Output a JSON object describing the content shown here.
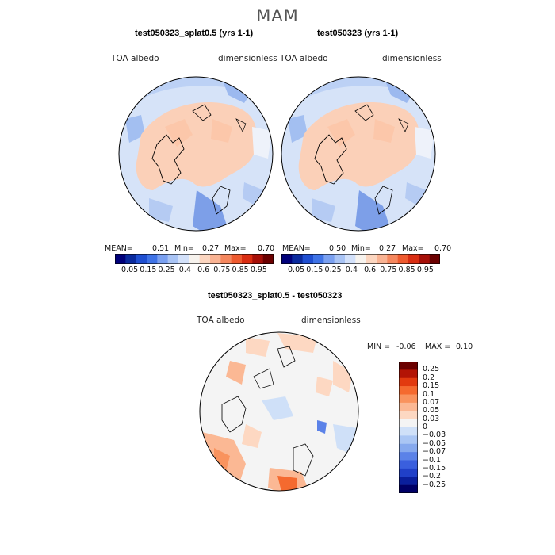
{
  "season_title": "MAM",
  "panels": [
    {
      "title": "test050323_splat0.5 (yrs 1-1)",
      "variable": "TOA albedo",
      "units": "dimensionless",
      "stats": {
        "mean_label": "MEAN=",
        "mean": "0.51",
        "min_label": "Min=",
        "min": "0.27",
        "max_label": "Max=",
        "max": "0.70"
      }
    },
    {
      "title": "test050323 (yrs 1-1)",
      "variable": "TOA albedo",
      "units": "dimensionless",
      "stats": {
        "mean_label": "MEAN=",
        "mean": "0.50",
        "min_label": "Min=",
        "min": "0.27",
        "max_label": "Max=",
        "max": "0.70"
      }
    }
  ],
  "abs_colorbar": {
    "colors": [
      "#00007a",
      "#0a2a9e",
      "#1f4fd1",
      "#3f73e6",
      "#7aa0f0",
      "#a9c4f5",
      "#d3e1fa",
      "#f7f3ee",
      "#fcd6c0",
      "#f9b393",
      "#f5875e",
      "#ee5a2f",
      "#d92d12",
      "#a60f08",
      "#6b0000"
    ],
    "ticks": [
      "0.05",
      "0.15",
      "0.25",
      "0.4",
      "0.6",
      "0.75",
      "0.85",
      "0.95"
    ]
  },
  "diff_panel": {
    "title": "test050323_splat0.5 - test050323",
    "variable": "TOA albedo",
    "units": "dimensionless",
    "min_label": "MIN =",
    "min": "-0.06",
    "max_label": "MAX =",
    "max": "0.10"
  },
  "diff_colorbar": {
    "colors": [
      "#6b0000",
      "#b31405",
      "#e23a0f",
      "#f56a2f",
      "#f9935e",
      "#fbb894",
      "#fdd8c2",
      "#f4f4f4",
      "#cfe0f8",
      "#aac6f4",
      "#86a9ee",
      "#5b82e8",
      "#3a5fde",
      "#2040c8",
      "#0a1f9c",
      "#000066"
    ],
    "ticks": [
      "0.25",
      "0.2",
      "0.15",
      "0.1",
      "0.07",
      "0.05",
      "0.03",
      "0",
      "−0.03",
      "−0.05",
      "−0.07",
      "−0.1",
      "−0.15",
      "−0.2",
      "−0.25"
    ]
  }
}
